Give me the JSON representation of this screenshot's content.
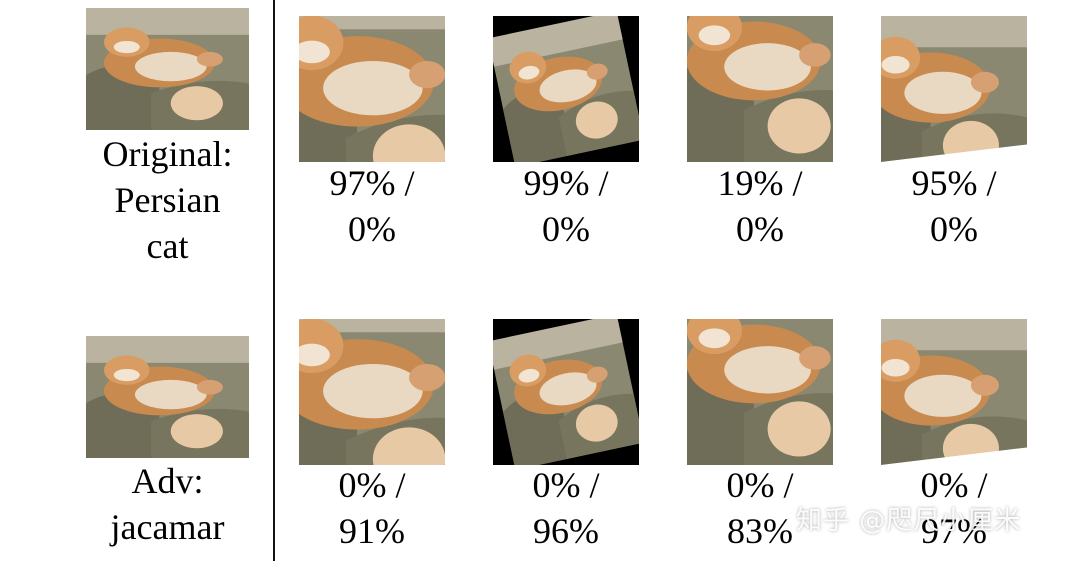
{
  "rows": [
    {
      "label_line1": "Original:",
      "label_line2": "Persian",
      "label_line3": "cat",
      "results": [
        {
          "line1": "97% /",
          "line2": "0%"
        },
        {
          "line1": "99% /",
          "line2": "0%"
        },
        {
          "line1": "19% /",
          "line2": "0%"
        },
        {
          "line1": "95% /",
          "line2": "0%"
        }
      ]
    },
    {
      "label_line1": "Adv:",
      "label_line2": "jacamar",
      "results": [
        {
          "line1": "0% /",
          "line2": "91%"
        },
        {
          "line1": "0% /",
          "line2": "96%"
        },
        {
          "line1": "0% /",
          "line2": "83%"
        },
        {
          "line1": "0% /",
          "line2": "97%"
        }
      ]
    }
  ],
  "watermark": "知乎 @咫尺小厘米"
}
